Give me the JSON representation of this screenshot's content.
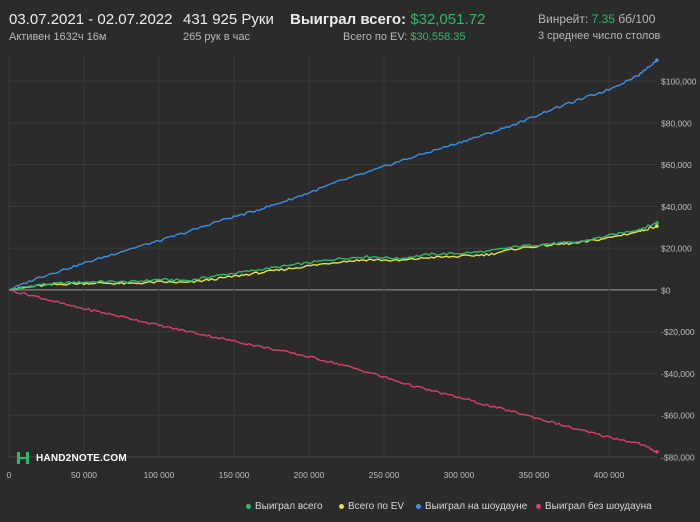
{
  "header": {
    "dates": "03.07.2021 - 02.07.2022",
    "active": "Активен 1632ч 16м",
    "hands": "431 925 Руки",
    "per_hour": "265 рук в час",
    "won_label": "Выиграл всего:",
    "won_value": "$32,051.72",
    "ev_label": "Всего по EV:",
    "ev_value": "$30,558.35",
    "winrate_label": "Винрейт:",
    "winrate_value": "7.35",
    "winrate_unit": "бб/100",
    "tables": "3 среднее число столов"
  },
  "logo": {
    "text": "HAND2NOTE.COM"
  },
  "colors": {
    "background": "#2b2b2b",
    "grid": "#3a3a3a",
    "zero_line": "#9a9a9a",
    "won_total": "#2fb86a",
    "ev_total": "#e8e04a",
    "showdown": "#3f8fe0",
    "non_showdown": "#d6406a"
  },
  "chart_data": {
    "type": "line",
    "xlim": [
      0,
      432000
    ],
    "ylim": [
      -80000,
      112000
    ],
    "x_ticks": [
      0,
      50000,
      100000,
      150000,
      200000,
      250000,
      300000,
      350000,
      400000
    ],
    "x_tick_labels": [
      "0",
      "50 000",
      "100 000",
      "150 000",
      "200 000",
      "250 000",
      "300 000",
      "350 000",
      "400 000"
    ],
    "y_ticks": [
      -80000,
      -60000,
      -40000,
      -20000,
      0,
      20000,
      40000,
      60000,
      80000,
      100000
    ],
    "y_tick_labels": [
      "-$80,000",
      "-$60,000",
      "-$40,000",
      "-$20,000",
      "$0",
      "$20,000",
      "$40,000",
      "$60,000",
      "$80,000",
      "$100,000"
    ],
    "grid": true,
    "legend_position": "bottom-right",
    "x": [
      0,
      20000,
      40000,
      60000,
      80000,
      100000,
      120000,
      140000,
      160000,
      180000,
      200000,
      220000,
      240000,
      260000,
      280000,
      300000,
      320000,
      340000,
      360000,
      380000,
      400000,
      420000,
      431925
    ],
    "series": [
      {
        "name": "Выиграл всего",
        "color_key": "won_total",
        "values": [
          0,
          2500,
          3500,
          4000,
          3800,
          5000,
          4500,
          7000,
          9000,
          11000,
          13000,
          15000,
          16000,
          15000,
          17000,
          17500,
          18500,
          21000,
          22000,
          23000,
          26000,
          29000,
          32052
        ]
      },
      {
        "name": "Всего по EV",
        "color_key": "ev_total",
        "values": [
          0,
          2000,
          3000,
          3300,
          3000,
          3800,
          3500,
          5500,
          7500,
          9500,
          11500,
          13500,
          14500,
          14000,
          15500,
          16000,
          17000,
          20000,
          21500,
          22500,
          25000,
          28000,
          30558
        ]
      },
      {
        "name": "Выиграл на шоудауне",
        "color_key": "showdown",
        "values": [
          0,
          6000,
          10500,
          15000,
          19500,
          23500,
          28000,
          33000,
          37000,
          41500,
          46500,
          52000,
          56500,
          61500,
          66000,
          70500,
          75000,
          80000,
          86000,
          91000,
          96000,
          103000,
          110000
        ]
      },
      {
        "name": "Выиграл без шоудауна",
        "color_key": "non_showdown",
        "values": [
          0,
          -3500,
          -7500,
          -10500,
          -13500,
          -17000,
          -20000,
          -23000,
          -26000,
          -29000,
          -32000,
          -35500,
          -39500,
          -44000,
          -48000,
          -51500,
          -55500,
          -59000,
          -63000,
          -67000,
          -70500,
          -73500,
          -77500
        ]
      }
    ]
  }
}
